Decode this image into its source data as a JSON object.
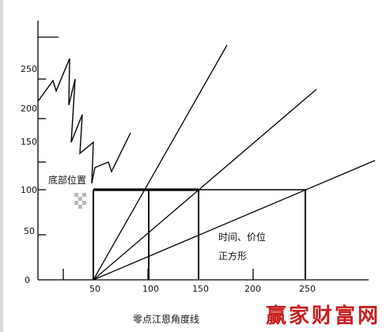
{
  "diagram": {
    "y_axis_ticks": [
      "250",
      "200",
      "150",
      "100",
      "50",
      "0"
    ],
    "x_axis_ticks": [
      "50",
      "100",
      "150",
      "200",
      "250"
    ],
    "annotations": {
      "bottom_position": "底部位置",
      "time_price_line1": "时间、价位",
      "time_price_line2": "正方形"
    },
    "caption": "零点江恩角度线",
    "watermark": "赢家财富网",
    "colors": {
      "line": "#000000",
      "watermark": "#c81e1e",
      "background": "#ffffff"
    }
  }
}
